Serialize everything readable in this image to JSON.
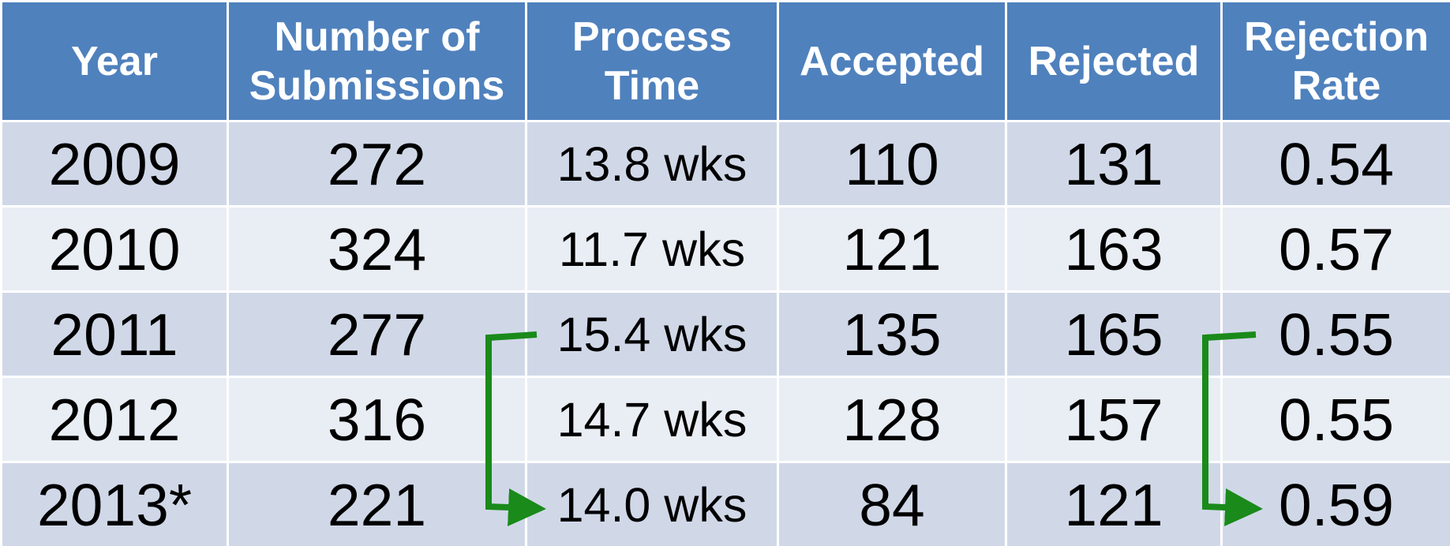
{
  "table": {
    "header": [
      "Year",
      "Number of Submissions",
      "Process Time",
      "Accepted",
      "Rejected",
      "Rejection Rate"
    ],
    "rows": [
      [
        "2009",
        "272",
        "13.8 wks",
        "110",
        "131",
        "0.54"
      ],
      [
        "2010",
        "324",
        "11.7 wks",
        "121",
        "163",
        "0.57"
      ],
      [
        "2011",
        "277",
        "15.4 wks",
        "135",
        "165",
        "0.55"
      ],
      [
        "2012",
        "316",
        "14.7 wks",
        "128",
        "157",
        "0.55"
      ],
      [
        "2013*",
        "221",
        "14.0 wks",
        "84",
        "121",
        "0.59"
      ]
    ]
  }
}
